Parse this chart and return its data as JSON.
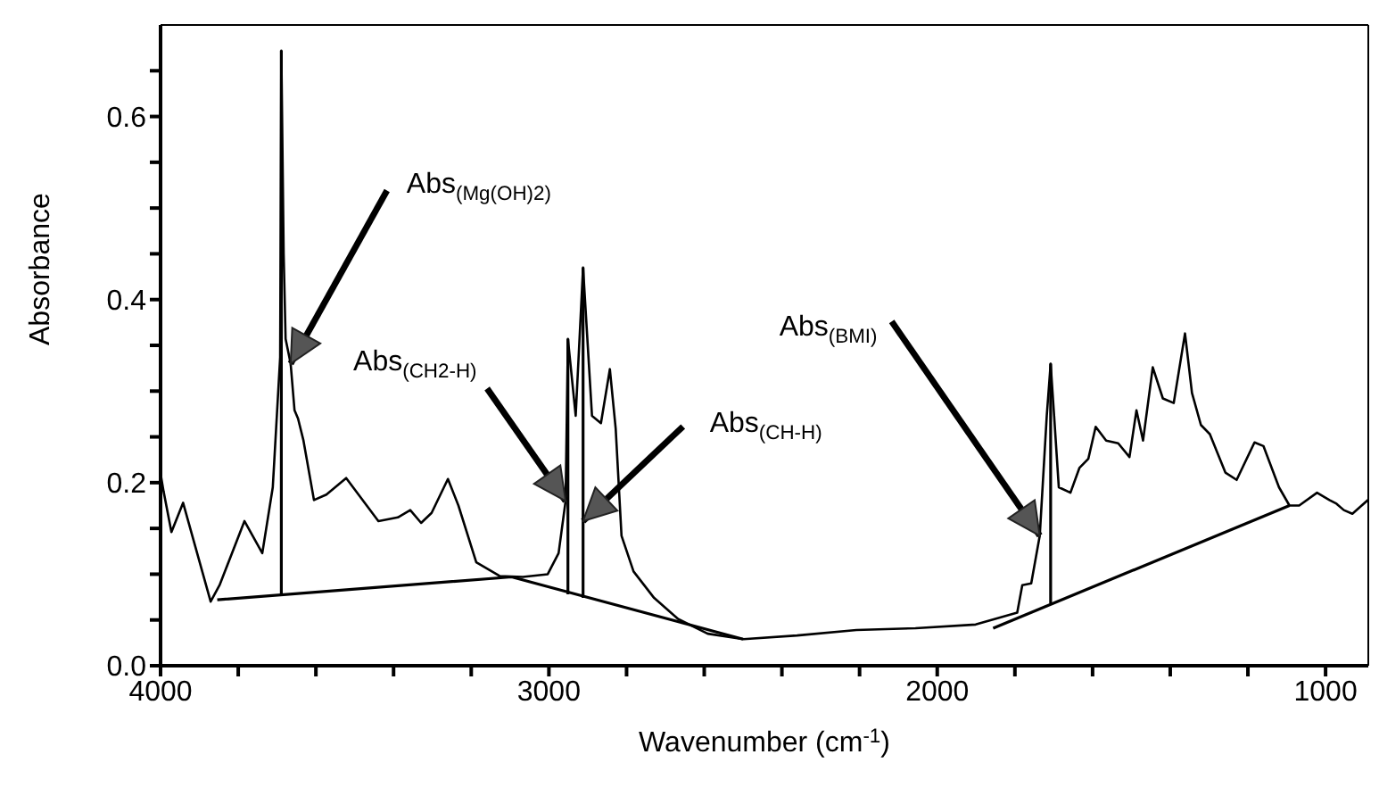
{
  "chart_data": {
    "type": "line",
    "xlabel": "Wavenumber (cm$^{-1}$)",
    "ylabel": "Absorbance",
    "xlim": [
      4000,
      890
    ],
    "ylim": [
      0,
      0.7
    ],
    "xticks": [
      4000,
      {
        "value": 3800,
        "label": null
      },
      {
        "value": 3600,
        "label": null
      },
      {
        "value": 3400,
        "label": null
      },
      {
        "value": 3200,
        "label": null
      },
      3000,
      {
        "value": 2800,
        "label": null
      },
      {
        "value": 2600,
        "label": null
      },
      {
        "value": 2400,
        "label": null
      },
      {
        "value": 2200,
        "label": null
      },
      2000,
      {
        "value": 1800,
        "label": null
      },
      {
        "value": 1600,
        "label": null
      },
      {
        "value": 1400,
        "label": null
      },
      {
        "value": 1200,
        "label": null
      },
      1000
    ],
    "yticks": [
      {
        "value": 0,
        "label": "0.0"
      },
      {
        "value": 0.05,
        "label": null
      },
      {
        "value": 0.1,
        "label": null
      },
      {
        "value": 0.15,
        "label": null
      },
      0.2,
      {
        "value": 0.25,
        "label": null
      },
      {
        "value": 0.3,
        "label": null
      },
      {
        "value": 0.35,
        "label": null
      },
      0.4,
      {
        "value": 0.45,
        "label": null
      },
      {
        "value": 0.5,
        "label": null
      },
      {
        "value": 0.55,
        "label": null
      },
      0.6,
      {
        "value": 0.65,
        "label": null
      }
    ],
    "marker": "none",
    "line_style": "solid",
    "series": [
      {
        "color": "#000000",
        "x": [
          4000,
          3992,
          3972,
          3942,
          3871,
          3848,
          3784,
          3738,
          3711,
          3692,
          3689,
          3683,
          3678,
          3665,
          3655,
          3646,
          3632,
          3605,
          3573,
          3522,
          3439,
          3389,
          3357,
          3329,
          3302,
          3260,
          3233,
          3187,
          3127,
          3067,
          3003,
          2975,
          2957,
          2951,
          2931,
          2912,
          2889,
          2866,
          2843,
          2828,
          2813,
          2782,
          2729,
          2667,
          2591,
          2499,
          2361,
          2208,
          2056,
          1901,
          1794,
          1781,
          1758,
          1736,
          1718,
          1708,
          1699,
          1687,
          1657,
          1634,
          1611,
          1592,
          1565,
          1534,
          1505,
          1487,
          1470,
          1445,
          1419,
          1391,
          1362,
          1344,
          1321,
          1298,
          1258,
          1229,
          1183,
          1160,
          1120,
          1093,
          1068,
          1022,
          990,
          972,
          953,
          931,
          891
        ],
        "values": [
          0.21,
          0.19,
          0.146,
          0.178,
          0.07,
          0.088,
          0.158,
          0.123,
          0.195,
          0.337,
          0.672,
          0.45,
          0.357,
          0.33,
          0.279,
          0.27,
          0.246,
          0.181,
          0.187,
          0.205,
          0.158,
          0.162,
          0.17,
          0.156,
          0.167,
          0.204,
          0.175,
          0.113,
          0.098,
          0.097,
          0.1,
          0.123,
          0.18,
          0.357,
          0.273,
          0.435,
          0.273,
          0.265,
          0.324,
          0.259,
          0.142,
          0.103,
          0.074,
          0.051,
          0.035,
          0.029,
          0.033,
          0.039,
          0.041,
          0.045,
          0.058,
          0.088,
          0.09,
          0.142,
          0.273,
          0.33,
          0.273,
          0.195,
          0.189,
          0.216,
          0.226,
          0.261,
          0.246,
          0.243,
          0.228,
          0.279,
          0.246,
          0.326,
          0.292,
          0.287,
          0.363,
          0.298,
          0.263,
          0.253,
          0.211,
          0.203,
          0.244,
          0.24,
          0.195,
          0.175,
          0.175,
          0.189,
          0.181,
          0.177,
          0.17,
          0.166,
          0.181
        ]
      },
      {
        "color": "#000000",
        "x": [
          3689,
          3689
        ],
        "values": [
          0.078,
          0.672
        ]
      },
      {
        "color": "#000000",
        "x": [
          2951,
          2951
        ],
        "values": [
          0.078,
          0.357
        ]
      },
      {
        "color": "#000000",
        "x": [
          2912,
          2912
        ],
        "values": [
          0.074,
          0.435
        ]
      },
      {
        "color": "#000000",
        "x": [
          1708,
          1708
        ],
        "values": [
          0.068,
          0.33
        ]
      },
      {
        "color": "#000000",
        "x": [
          3854,
          3096,
          2500
        ],
        "values": [
          0.072,
          0.097,
          0.029
        ]
      },
      {
        "color": "#000000",
        "x": [
          1856,
          1093
        ],
        "values": [
          0.041,
          0.175
        ]
      }
    ],
    "annotations": [
      {
        "text": "Abs$_{(Mg(OH)2)}$",
        "x": 3665,
        "y": 0.33
      },
      {
        "text": "Abs$_{(CH2-H)}$",
        "x": 2957,
        "y": 0.18
      },
      {
        "text": "Abs$_{(CH-H)}$",
        "x": 2912,
        "y": 0.158
      },
      {
        "text": "Abs$_{(BMI)}$",
        "x": 1736,
        "y": 0.142
      }
    ]
  }
}
